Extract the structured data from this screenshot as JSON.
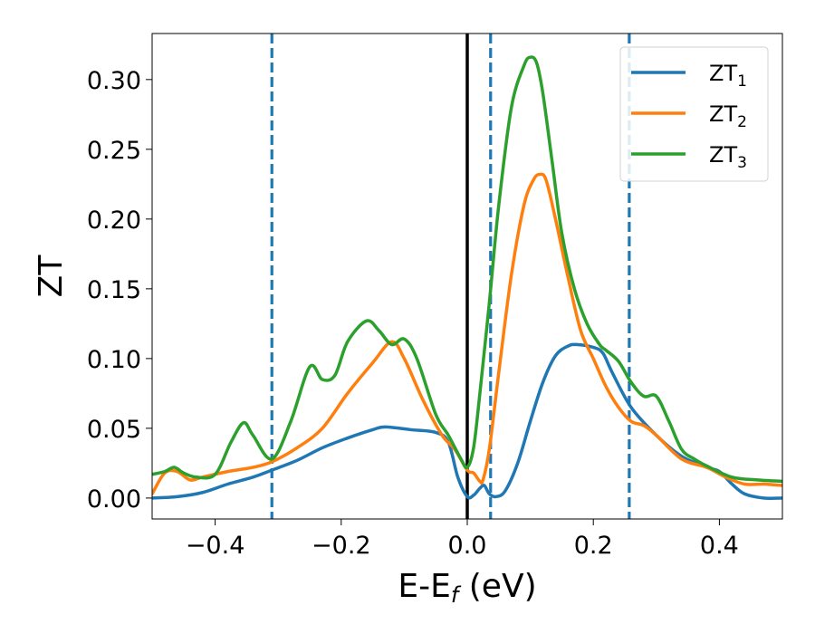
{
  "chart_data": {
    "type": "line",
    "xlabel": "E-E",
    "xlabel_sub": "f",
    "xlabel_unit": " (eV)",
    "ylabel": "ZT",
    "xlim": [
      -0.5,
      0.5
    ],
    "ylim": [
      -0.015,
      0.333
    ],
    "xticks": [
      -0.4,
      -0.2,
      0.0,
      0.2,
      0.4
    ],
    "xtick_labels": [
      "−0.4",
      "−0.2",
      "0.0",
      "0.2",
      "0.4"
    ],
    "yticks": [
      0.0,
      0.05,
      0.1,
      0.15,
      0.2,
      0.25,
      0.3
    ],
    "ytick_labels": [
      "0.00",
      "0.05",
      "0.10",
      "0.15",
      "0.20",
      "0.25",
      "0.30"
    ],
    "grid": false,
    "legend_position": "top-right",
    "vertical_lines": [
      {
        "x": 0.0,
        "style": "solid",
        "color": "#000000"
      },
      {
        "x": -0.31,
        "style": "dashed",
        "color": "#1f77b4"
      },
      {
        "x": 0.037,
        "style": "dashed",
        "color": "#1f77b4"
      },
      {
        "x": 0.257,
        "style": "dashed",
        "color": "#1f77b4"
      }
    ],
    "series": [
      {
        "name": "ZT",
        "name_sub": "1",
        "color": "#1f77b4",
        "x": [
          -0.5,
          -0.46,
          -0.42,
          -0.38,
          -0.34,
          -0.31,
          -0.27,
          -0.23,
          -0.19,
          -0.15,
          -0.13,
          -0.09,
          -0.05,
          -0.03,
          -0.015,
          0.0,
          0.01,
          0.02,
          0.027,
          0.035,
          0.045,
          0.06,
          0.08,
          0.1,
          0.12,
          0.14,
          0.16,
          0.175,
          0.2,
          0.215,
          0.23,
          0.26,
          0.3,
          0.34,
          0.38,
          0.4,
          0.42,
          0.44,
          0.47,
          0.5
        ],
        "y": [
          0.0,
          0.001,
          0.004,
          0.01,
          0.015,
          0.02,
          0.027,
          0.036,
          0.043,
          0.049,
          0.051,
          0.049,
          0.047,
          0.04,
          0.015,
          0.001,
          0.002,
          0.007,
          0.009,
          0.003,
          0.001,
          0.005,
          0.025,
          0.055,
          0.083,
          0.102,
          0.109,
          0.11,
          0.108,
          0.104,
          0.09,
          0.065,
          0.045,
          0.03,
          0.022,
          0.019,
          0.01,
          0.003,
          0.0,
          0.0
        ]
      },
      {
        "name": "ZT",
        "name_sub": "2",
        "color": "#ff7f0e",
        "x": [
          -0.5,
          -0.48,
          -0.46,
          -0.44,
          -0.42,
          -0.38,
          -0.34,
          -0.31,
          -0.27,
          -0.23,
          -0.19,
          -0.15,
          -0.12,
          -0.1,
          -0.07,
          -0.04,
          -0.02,
          0.0,
          0.01,
          0.02,
          0.025,
          0.035,
          0.05,
          0.07,
          0.09,
          0.105,
          0.115,
          0.125,
          0.14,
          0.16,
          0.18,
          0.2,
          0.22,
          0.24,
          0.26,
          0.28,
          0.3,
          0.34,
          0.38,
          0.41,
          0.44,
          0.47,
          0.5
        ],
        "y": [
          0.003,
          0.018,
          0.019,
          0.013,
          0.015,
          0.019,
          0.022,
          0.026,
          0.036,
          0.05,
          0.075,
          0.097,
          0.112,
          0.1,
          0.07,
          0.045,
          0.035,
          0.02,
          0.018,
          0.012,
          0.013,
          0.035,
          0.09,
          0.16,
          0.21,
          0.228,
          0.232,
          0.228,
          0.2,
          0.158,
          0.12,
          0.1,
          0.08,
          0.065,
          0.055,
          0.052,
          0.045,
          0.028,
          0.022,
          0.015,
          0.01,
          0.01,
          0.009
        ]
      },
      {
        "name": "ZT",
        "name_sub": "3",
        "color": "#2ca02c",
        "x": [
          -0.5,
          -0.48,
          -0.465,
          -0.45,
          -0.43,
          -0.4,
          -0.375,
          -0.355,
          -0.34,
          -0.31,
          -0.28,
          -0.25,
          -0.23,
          -0.21,
          -0.19,
          -0.16,
          -0.14,
          -0.12,
          -0.1,
          -0.08,
          -0.05,
          -0.03,
          -0.01,
          0.0,
          0.01,
          0.02,
          0.035,
          0.05,
          0.07,
          0.09,
          0.1,
          0.11,
          0.12,
          0.135,
          0.15,
          0.17,
          0.19,
          0.21,
          0.22,
          0.24,
          0.26,
          0.28,
          0.3,
          0.32,
          0.34,
          0.36,
          0.38,
          0.42,
          0.46,
          0.5
        ],
        "y": [
          0.017,
          0.019,
          0.022,
          0.018,
          0.015,
          0.017,
          0.04,
          0.054,
          0.045,
          0.028,
          0.055,
          0.094,
          0.085,
          0.088,
          0.112,
          0.127,
          0.12,
          0.11,
          0.114,
          0.1,
          0.06,
          0.045,
          0.028,
          0.022,
          0.036,
          0.075,
          0.14,
          0.21,
          0.28,
          0.31,
          0.316,
          0.312,
          0.29,
          0.24,
          0.19,
          0.15,
          0.125,
          0.11,
          0.106,
          0.098,
          0.083,
          0.073,
          0.073,
          0.055,
          0.035,
          0.028,
          0.023,
          0.015,
          0.013,
          0.012
        ]
      }
    ]
  }
}
